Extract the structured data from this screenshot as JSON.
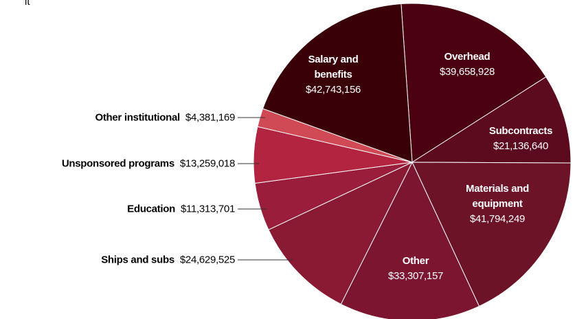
{
  "chart_data": {
    "type": "pie",
    "title": "it",
    "categories": [
      "Overhead",
      "Subcontracts",
      "Materials and equipment",
      "Other",
      "Ships and subs",
      "Education",
      "Unsponsored programs",
      "Other institutional",
      "Salary and benefits"
    ],
    "values": [
      39658928,
      21136640,
      41794249,
      33307157,
      24629525,
      11313701,
      13259018,
      4381169,
      42743156
    ],
    "value_labels": [
      "$39,658,928",
      "$21,136,640",
      "$41,794,249",
      "$33,307,157",
      "$24,629,525",
      "$11,313,701",
      "$13,259,018",
      "$4,381,169",
      "$42,743,156"
    ],
    "colors": [
      "#4a0010",
      "#5c0a1d",
      "#6d1327",
      "#7c1630",
      "#8a1a34",
      "#9a1e3b",
      "#b2243f",
      "#d04a55",
      "#3a0008"
    ]
  }
}
